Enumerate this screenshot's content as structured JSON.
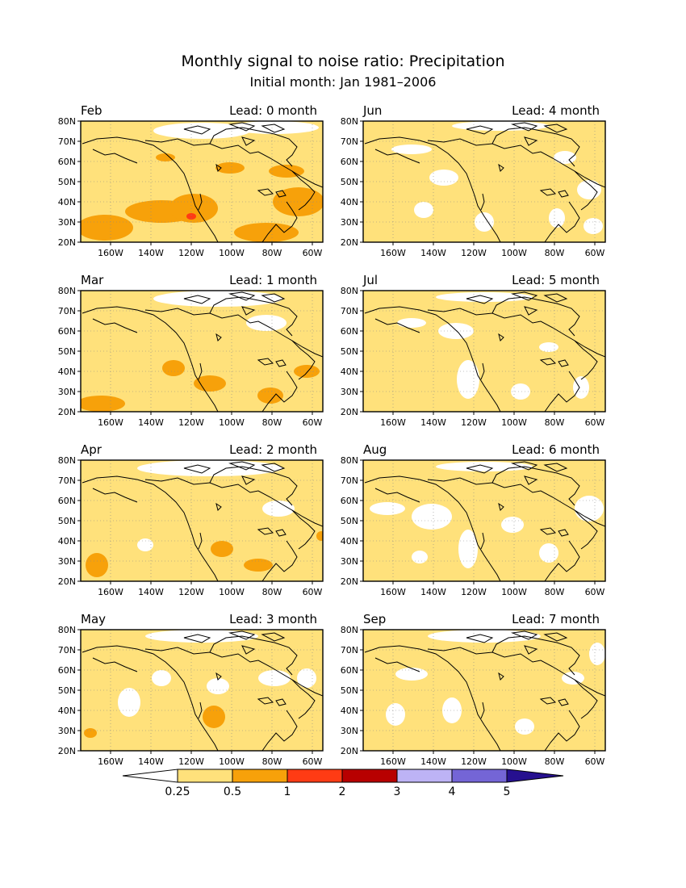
{
  "title": "Monthly signal to noise ratio: Precipitation",
  "subtitle": "Initial month: Jan 1981–2006",
  "colors": {
    "land_outline": "#000000",
    "grid": "#888888",
    "bins": [
      "#ffffff",
      "#ffe17b",
      "#f7a10a",
      "#ff3b14",
      "#b80000",
      "#bdb3f5",
      "#7465d6",
      "#26108f"
    ]
  },
  "lat_labels": [
    "20N",
    "30N",
    "40N",
    "50N",
    "60N",
    "70N",
    "80N"
  ],
  "lon_labels": [
    "160W",
    "140W",
    "120W",
    "100W",
    "80W",
    "60W"
  ],
  "panels": [
    {
      "month": "Feb",
      "lead": "Lead: 0 month"
    },
    {
      "month": "Jun",
      "lead": "Lead: 4 month"
    },
    {
      "month": "Mar",
      "lead": "Lead: 1 month"
    },
    {
      "month": "Jul",
      "lead": "Lead: 5 month"
    },
    {
      "month": "Apr",
      "lead": "Lead: 2 month"
    },
    {
      "month": "Aug",
      "lead": "Lead: 6 month"
    },
    {
      "month": "May",
      "lead": "Lead: 3 month"
    },
    {
      "month": "Sep",
      "lead": "Lead: 7 month"
    }
  ],
  "colorbar": {
    "labels": [
      "0.25",
      "0.5",
      "1",
      "2",
      "3",
      "4",
      "5"
    ]
  }
}
